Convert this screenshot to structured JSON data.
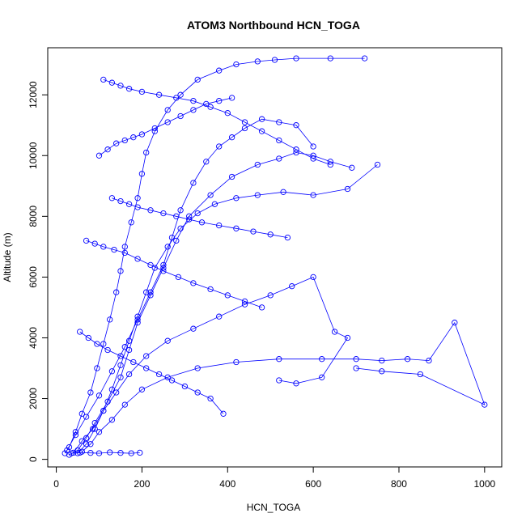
{
  "chart_data": {
    "type": "line",
    "title": "ATOM3 Northbound HCN_TOGA",
    "xlabel": "HCN_TOGA",
    "ylabel": "Altitude (m)",
    "xlim": [
      -20,
      1040
    ],
    "ylim": [
      -250,
      13550
    ],
    "xticks": [
      0,
      200,
      400,
      600,
      800,
      1000
    ],
    "yticks": [
      0,
      2000,
      4000,
      6000,
      8000,
      10000,
      12000
    ],
    "xtick_labels": [
      "0",
      "200",
      "400",
      "600",
      "800",
      "1000"
    ],
    "ytick_labels": [
      "0",
      "2000",
      "4000",
      "6000",
      "8000",
      "10000",
      "12000"
    ],
    "markers": "open-circle",
    "grid": false,
    "color": "#0000ff",
    "series": [
      {
        "x": [
          20,
          30,
          45,
          60,
          80,
          95,
          110,
          125,
          140,
          150,
          160,
          175,
          190,
          200,
          210,
          230,
          260,
          290,
          330,
          380,
          420,
          470,
          510,
          560,
          640,
          720
        ],
        "y": [
          200,
          400,
          900,
          1500,
          2200,
          3000,
          3800,
          4600,
          5500,
          6200,
          7000,
          7800,
          8600,
          9400,
          10100,
          10800,
          11500,
          12000,
          12500,
          12800,
          13000,
          13100,
          13150,
          13200,
          13200,
          13200
        ]
      },
      {
        "x": [
          30,
          50,
          70,
          90,
          120,
          150,
          170,
          190,
          220,
          250,
          280,
          310,
          360,
          410,
          470,
          520,
          560,
          600,
          640,
          690
        ],
        "y": [
          150,
          300,
          700,
          1200,
          1900,
          2700,
          3600,
          4500,
          5400,
          6300,
          7200,
          8000,
          8700,
          9300,
          9700,
          9900,
          10100,
          10000,
          9800,
          9600
        ]
      },
      {
        "x": [
          60,
          80,
          100,
          130,
          160,
          200,
          260,
          330,
          420,
          520,
          620,
          700,
          760,
          820,
          870,
          930,
          1000,
          850,
          760,
          700
        ],
        "y": [
          250,
          500,
          900,
          1300,
          1800,
          2300,
          2700,
          3000,
          3200,
          3300,
          3300,
          3300,
          3250,
          3300,
          3250,
          4500,
          1800,
          2800,
          2900,
          3000
        ]
      },
      {
        "x": [
          40,
          60,
          85,
          110,
          140,
          170,
          210,
          260,
          320,
          380,
          440,
          500,
          550,
          600,
          650,
          680,
          620,
          560,
          520
        ],
        "y": [
          220,
          600,
          1000,
          1600,
          2200,
          2800,
          3400,
          3900,
          4300,
          4700,
          5100,
          5400,
          5700,
          6000,
          4200,
          4000,
          2700,
          2500,
          2600
        ]
      },
      {
        "x": [
          50,
          70,
          90,
          110,
          130,
          150,
          170,
          190,
          210,
          230,
          260,
          290,
          330,
          370,
          420,
          470,
          530,
          600,
          680,
          750
        ],
        "y": [
          200,
          500,
          1000,
          1600,
          2300,
          3100,
          3900,
          4700,
          5500,
          6300,
          7000,
          7600,
          8100,
          8400,
          8600,
          8700,
          8800,
          8700,
          8900,
          9700
        ]
      },
      {
        "x": [
          25,
          45,
          70,
          100,
          130,
          160,
          190,
          220,
          250,
          270,
          290,
          320,
          350,
          380,
          410,
          440,
          480,
          520,
          560,
          600
        ],
        "y": [
          300,
          800,
          1400,
          2100,
          2900,
          3700,
          4600,
          5500,
          6400,
          7300,
          8200,
          9100,
          9800,
          10300,
          10600,
          10900,
          11200,
          11100,
          11000,
          10300
        ]
      },
      {
        "x": [
          100,
          120,
          140,
          160,
          180,
          200,
          230,
          260,
          290,
          320,
          350,
          380,
          410
        ],
        "y": [
          10000,
          10200,
          10400,
          10500,
          10600,
          10700,
          10900,
          11100,
          11300,
          11500,
          11700,
          11800,
          11900
        ]
      },
      {
        "x": [
          110,
          130,
          150,
          170,
          200,
          240,
          280,
          320,
          360,
          400,
          440,
          480,
          520,
          560,
          600,
          640
        ],
        "y": [
          12500,
          12400,
          12300,
          12200,
          12100,
          12000,
          11900,
          11800,
          11600,
          11400,
          11100,
          10800,
          10500,
          10200,
          9900,
          9700
        ]
      },
      {
        "x": [
          70,
          90,
          110,
          135,
          160,
          190,
          220,
          250,
          285,
          320,
          360,
          400,
          440,
          480
        ],
        "y": [
          7200,
          7100,
          7000,
          6900,
          6800,
          6600,
          6400,
          6200,
          6000,
          5800,
          5600,
          5400,
          5200,
          5000
        ]
      },
      {
        "x": [
          55,
          75,
          95,
          120,
          150,
          180,
          210,
          240,
          270,
          300,
          330,
          360,
          390
        ],
        "y": [
          4200,
          4000,
          3800,
          3600,
          3400,
          3200,
          3000,
          2800,
          2600,
          2400,
          2200,
          2000,
          1500
        ]
      },
      {
        "x": [
          35,
          55,
          80,
          100,
          125,
          150,
          175,
          195
        ],
        "y": [
          200,
          220,
          210,
          200,
          230,
          210,
          200,
          220
        ]
      },
      {
        "x": [
          130,
          150,
          170,
          190,
          220,
          250,
          280,
          310,
          340,
          380,
          420,
          460,
          500,
          540
        ],
        "y": [
          8600,
          8500,
          8400,
          8300,
          8200,
          8100,
          8000,
          7900,
          7800,
          7700,
          7600,
          7500,
          7400,
          7300
        ]
      }
    ]
  }
}
